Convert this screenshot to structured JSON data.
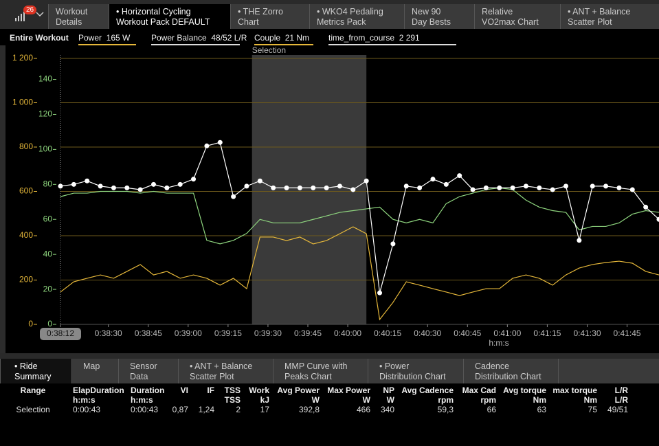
{
  "tabs": {
    "badge": 26,
    "items": [
      "Workout\nDetails",
      "• Horizontal Cycling\nWorkout Pack DEFAULT",
      "• THE Zorro\nChart",
      "• WKO4 Pedaling\nMetrics Pack",
      "New 90\nDay Bests",
      "Relative\nVO2max Chart",
      "• ANT + Balance\nScatter Plot"
    ]
  },
  "legend_row": [
    "Entire Workout",
    "Power  165 W",
    "Power Balance  48/52 L/R",
    "Couple  21 Nm",
    "time_from_course  2 291"
  ],
  "chart_data": {
    "type": "line",
    "selection": {
      "label": "Selection",
      "start": 2364,
      "end": 2407
    },
    "x_label": "h:m:s",
    "x": [
      2292,
      2297,
      2302,
      2307,
      2312,
      2317,
      2322,
      2327,
      2332,
      2337,
      2342,
      2347,
      2352,
      2357,
      2362,
      2367,
      2372,
      2377,
      2382,
      2387,
      2392,
      2397,
      2402,
      2407,
      2412,
      2417,
      2422,
      2427,
      2432,
      2437,
      2442,
      2447,
      2452,
      2457,
      2462,
      2467,
      2472,
      2477,
      2482,
      2487,
      2492,
      2497,
      2502,
      2507,
      2512,
      2517
    ],
    "xlim": [
      2292,
      2517
    ],
    "xticks": [
      {
        "value": 2292,
        "label": "0:38:12"
      },
      {
        "value": 2310,
        "label": "0:38:30"
      },
      {
        "value": 2325,
        "label": "0:38:45"
      },
      {
        "value": 2340,
        "label": "0:39:00"
      },
      {
        "value": 2355,
        "label": "0:39:15"
      },
      {
        "value": 2370,
        "label": "0:39:30"
      },
      {
        "value": 2385,
        "label": "0:39:45"
      },
      {
        "value": 2400,
        "label": "0:40:00"
      },
      {
        "value": 2415,
        "label": "0:40:15"
      },
      {
        "value": 2430,
        "label": "0:40:30"
      },
      {
        "value": 2445,
        "label": "0:40:45"
      },
      {
        "value": 2460,
        "label": "0:41:00"
      },
      {
        "value": 2475,
        "label": "0:41:15"
      },
      {
        "value": 2490,
        "label": "0:41:30"
      },
      {
        "value": 2505,
        "label": "0:41:45"
      }
    ],
    "ylim": [
      0,
      1200
    ],
    "yticks": [
      0,
      {
        "value": 200,
        "label": "200"
      },
      {
        "value": 400,
        "label": "400"
      },
      {
        "value": 600,
        "label": "600"
      },
      {
        "value": 800,
        "label": "800"
      },
      {
        "value": 1000,
        "label": "1 000"
      },
      {
        "value": 1200,
        "label": "1 200"
      }
    ],
    "y_color": "#e6b83a",
    "y2lim": [
      0,
      152
    ],
    "y2ticks": [
      0,
      20,
      40,
      60,
      80,
      100,
      120,
      140
    ],
    "y2_color": "#8fd67f",
    "grid": true,
    "series": [
      {
        "color": "#e6b83a",
        "axis": "y",
        "values": [
          146,
          192,
          208,
          223,
          208,
          239,
          270,
          223,
          239,
          208,
          223,
          208,
          177,
          208,
          161,
          394,
          394,
          378,
          394,
          363,
          378,
          409,
          440,
          409,
          22,
          99,
          192,
          177,
          161,
          146,
          130,
          146,
          161,
          161,
          208,
          223,
          208,
          177,
          223,
          254,
          270,
          279,
          285,
          276,
          239,
          223
        ]
      },
      {
        "color": "#8fd67f",
        "axis": "y2",
        "values": [
          73,
          75,
          75,
          76,
          76,
          76,
          75,
          76,
          75,
          75,
          75,
          48,
          46,
          48,
          52,
          60,
          58,
          58,
          58,
          60,
          62,
          64,
          65,
          66,
          67,
          60,
          58,
          60,
          58,
          69,
          73,
          75,
          77,
          78,
          77,
          71,
          67,
          65,
          64,
          54,
          56,
          56,
          58,
          63,
          65,
          64
        ]
      },
      {
        "color": "#ffffff",
        "axis": "y2",
        "markers": true,
        "values": [
          79,
          80,
          82,
          79,
          78,
          78,
          77,
          80,
          78,
          80,
          83,
          102,
          104,
          73,
          79,
          82,
          78,
          78,
          78,
          78,
          78,
          79,
          77,
          82,
          18,
          46,
          79,
          78,
          83,
          80,
          85,
          77,
          78,
          78,
          78,
          79,
          78,
          77,
          79,
          48,
          79,
          79,
          78,
          77,
          67,
          60
        ]
      }
    ]
  },
  "bottom_tabs": [
    "• Ride\nSummary",
    "Map",
    "Sensor\nData",
    "• ANT + Balance\nScatter Plot",
    "MMP Curve with\nPeaks Chart",
    "• Power\nDistribution Chart",
    "Cadence\nDistribution Chart"
  ],
  "table": {
    "columns": [
      {
        "header": "Range"
      },
      {
        "header": "ElapDuration",
        "unit": "h:m:s"
      },
      {
        "header": "Duration",
        "unit": "h:m:s"
      },
      {
        "header": "VI"
      },
      {
        "header": "IF"
      },
      {
        "header": "TSS",
        "unit": "TSS"
      },
      {
        "header": "Work",
        "unit": "kJ"
      },
      {
        "header": "Avg Power",
        "unit": "W"
      },
      {
        "header": "Max Power",
        "unit": "W"
      },
      {
        "header": "NP",
        "unit": "W"
      },
      {
        "header": "Avg Cadence",
        "unit": "rpm"
      },
      {
        "header": "Max Cad",
        "unit": "rpm"
      },
      {
        "header": "Avg torque",
        "unit": "Nm"
      },
      {
        "header": "max torque",
        "unit": "Nm"
      },
      {
        "header": "L/R",
        "unit": "L/R"
      }
    ],
    "rows": [
      [
        "Selection",
        "0:00:43",
        "0:00:43",
        "0,87",
        "1,24",
        2,
        17,
        "392,8",
        466,
        340,
        "59,3",
        66,
        63,
        75,
        "49/51"
      ]
    ]
  }
}
